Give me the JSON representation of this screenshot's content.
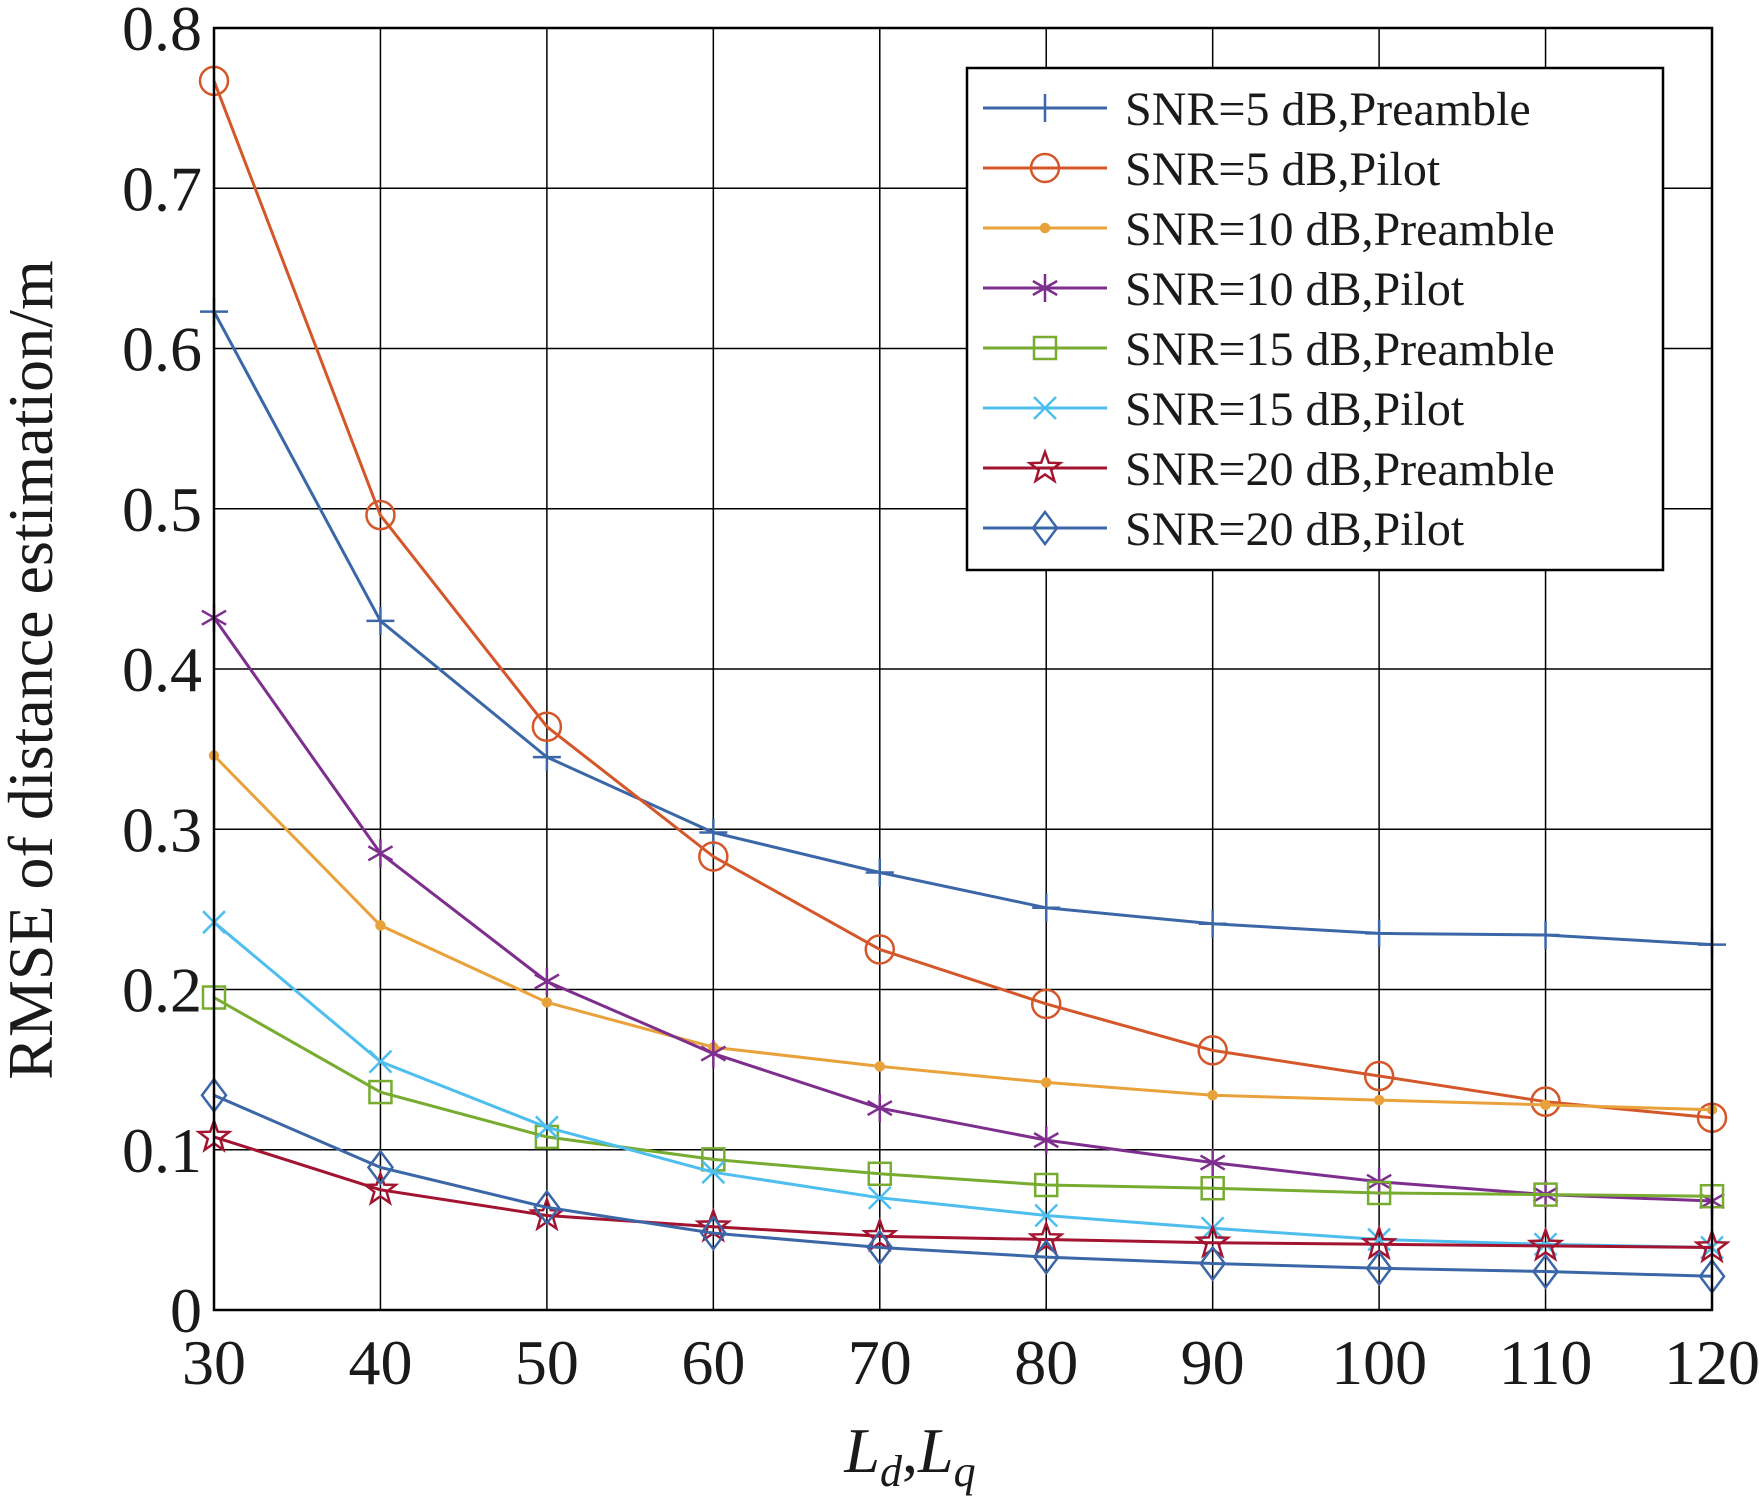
{
  "chart_data": {
    "type": "line",
    "title": "",
    "xlabel_main": "L",
    "xlabel_sub1": "d",
    "xlabel_sep": ",",
    "xlabel_main2": "L",
    "xlabel_sub2": "q",
    "ylabel": "RMSE of distance estimation/m",
    "xlim": [
      30,
      120
    ],
    "ylim": [
      0,
      0.8
    ],
    "x": [
      30,
      40,
      50,
      60,
      70,
      80,
      90,
      100,
      110,
      120
    ],
    "xticks": [
      "30",
      "40",
      "50",
      "60",
      "70",
      "80",
      "90",
      "100",
      "110",
      "120"
    ],
    "yticks": [
      "0",
      "0.1",
      "0.2",
      "0.3",
      "0.4",
      "0.5",
      "0.6",
      "0.7",
      "0.8"
    ],
    "grid": true,
    "legend_position": "top-right",
    "series": [
      {
        "name": "SNR=5 dB,Preamble",
        "color": "#3b67a8",
        "marker": "plus",
        "values": [
          0.623,
          0.43,
          0.345,
          0.298,
          0.273,
          0.251,
          0.241,
          0.235,
          0.234,
          0.228
        ]
      },
      {
        "name": "SNR=5 dB,Pilot",
        "color": "#d4572a",
        "marker": "circle",
        "values": [
          0.767,
          0.496,
          0.364,
          0.283,
          0.225,
          0.191,
          0.162,
          0.146,
          0.13,
          0.12
        ]
      },
      {
        "name": "SNR=10 dB,Preamble",
        "color": "#e9a23b",
        "marker": "dot",
        "values": [
          0.346,
          0.24,
          0.192,
          0.164,
          0.152,
          0.142,
          0.134,
          0.131,
          0.128,
          0.125
        ]
      },
      {
        "name": "SNR=10 dB,Pilot",
        "color": "#7e2f8e",
        "marker": "star6",
        "values": [
          0.432,
          0.285,
          0.205,
          0.16,
          0.126,
          0.106,
          0.092,
          0.08,
          0.072,
          0.068
        ]
      },
      {
        "name": "SNR=15 dB,Preamble",
        "color": "#77ac30",
        "marker": "square",
        "values": [
          0.195,
          0.136,
          0.108,
          0.094,
          0.085,
          0.078,
          0.076,
          0.073,
          0.072,
          0.071
        ]
      },
      {
        "name": "SNR=15 dB,Pilot",
        "color": "#4dbeee",
        "marker": "x",
        "values": [
          0.242,
          0.155,
          0.114,
          0.086,
          0.07,
          0.059,
          0.051,
          0.044,
          0.041,
          0.039
        ]
      },
      {
        "name": "SNR=20 dB,Preamble",
        "color": "#a2142f",
        "marker": "pentagram",
        "values": [
          0.108,
          0.075,
          0.059,
          0.052,
          0.046,
          0.044,
          0.042,
          0.041,
          0.04,
          0.039
        ]
      },
      {
        "name": "SNR=20 dB,Pilot",
        "color": "#3b67a8",
        "marker": "diamond",
        "values": [
          0.134,
          0.089,
          0.064,
          0.048,
          0.039,
          0.033,
          0.029,
          0.026,
          0.024,
          0.021
        ]
      }
    ]
  }
}
